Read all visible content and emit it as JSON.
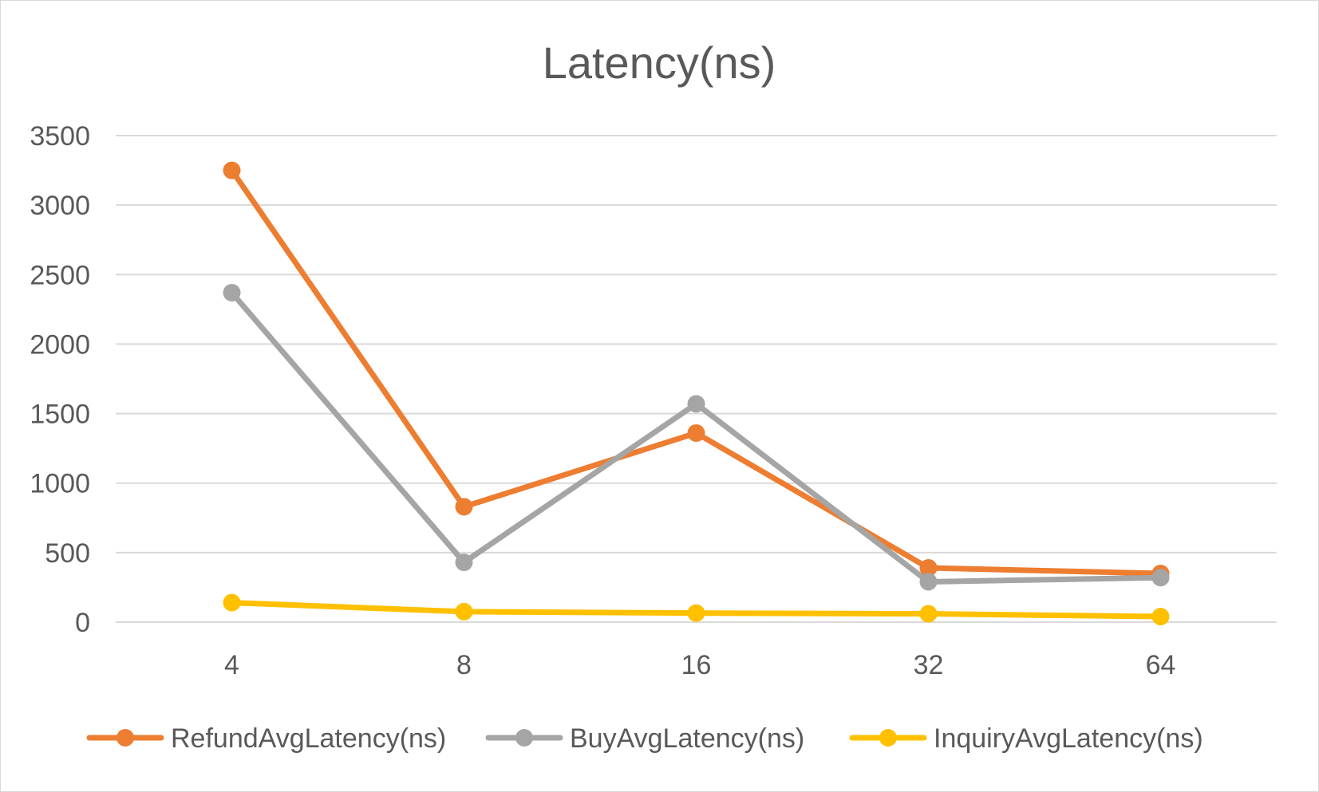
{
  "chart_data": {
    "type": "line",
    "title": "Latency(ns)",
    "xlabel": "",
    "ylabel": "",
    "categories": [
      "4",
      "8",
      "16",
      "32",
      "64"
    ],
    "ylim": [
      0,
      3500
    ],
    "y_ticks": [
      "0",
      "500",
      "1000",
      "1500",
      "2000",
      "2500",
      "3000",
      "3500"
    ],
    "grid": true,
    "legend_position": "bottom",
    "series": [
      {
        "name": "RefundAvgLatency(ns)",
        "color": "#ED7D31",
        "values": [
          3250,
          830,
          1360,
          390,
          350
        ]
      },
      {
        "name": "BuyAvgLatency(ns)",
        "color": "#A5A5A5",
        "values": [
          2370,
          430,
          1570,
          290,
          320
        ]
      },
      {
        "name": "InquiryAvgLatency(ns)",
        "color": "#FFC000",
        "values": [
          140,
          75,
          65,
          60,
          40
        ]
      }
    ]
  }
}
